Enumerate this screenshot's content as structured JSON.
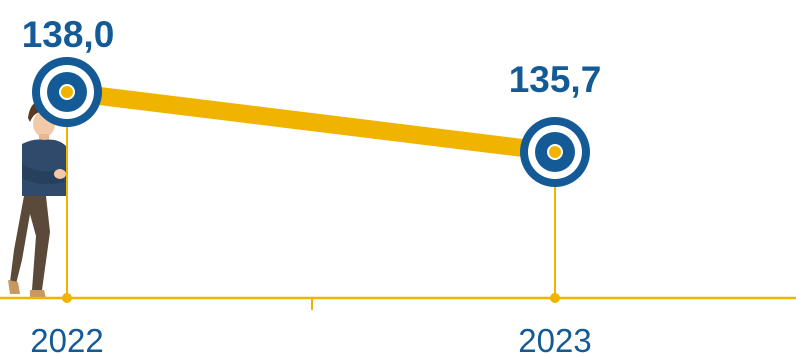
{
  "chart_data": {
    "type": "line",
    "x": [
      "2022",
      "2023"
    ],
    "values": [
      138.0,
      135.7
    ],
    "value_labels": [
      "138,0",
      "135,7"
    ],
    "tick_labels": [
      "2022",
      "2023"
    ],
    "title": "",
    "xlabel": "",
    "ylabel": "",
    "ylim": [
      133,
      140
    ],
    "grid": false,
    "legend": "none"
  },
  "colors": {
    "line": "#f0b400",
    "axis": "#f0b400",
    "marker_ring": "#145a96",
    "marker_center": "#f0b400",
    "value_text": "#145a96",
    "tick_text": "#145a96"
  },
  "illustration": "man-leaning-figure"
}
